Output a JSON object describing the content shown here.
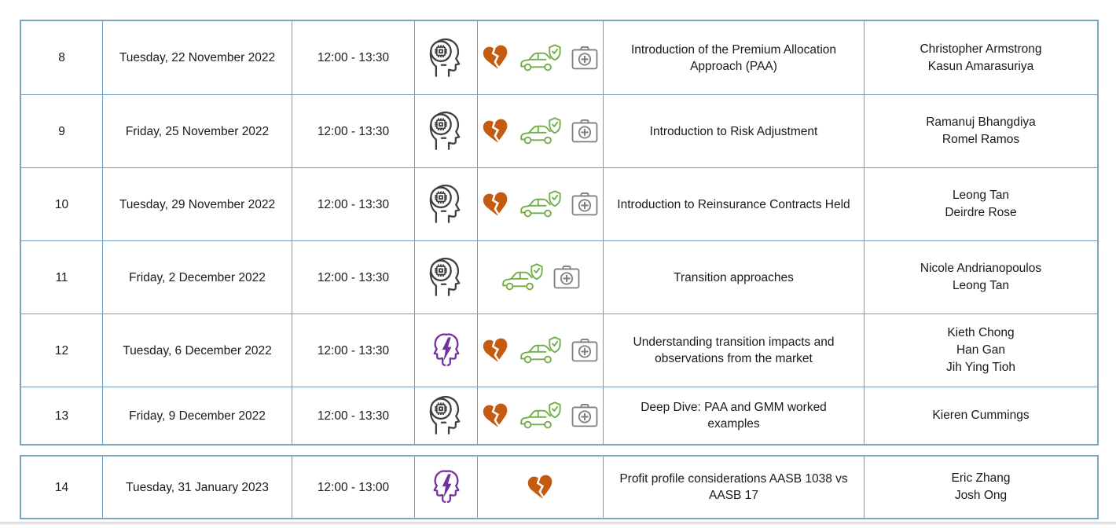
{
  "colors": {
    "line": "#6b9dc6",
    "outerLine": "#7ea3bd",
    "text": "#1a1a1a",
    "headDark": "#3f3f3f",
    "headPurple": "#7030A0",
    "heart": "#C55A11",
    "car": "#70AD47",
    "kit": "#7f7f7f"
  },
  "icon_legend": {
    "head-chip": "head profile with processor chip (technical session)",
    "heads-lightning": "two head profiles with lightning bolt (discussion session)",
    "broken-heart": "broken heart (life insurance)",
    "car-shield": "car with shield checkmark (general insurance)",
    "first-aid-kit": "first aid kit (health insurance)"
  },
  "table": {
    "rows": [
      {
        "session": "8",
        "date": "Tuesday, 22 November 2022",
        "time": "12:00 - 13:30",
        "format_icon": "head-chip",
        "product_icons": [
          "broken-heart",
          "car-shield",
          "first-aid-kit"
        ],
        "topic": "Introduction of the Premium Allocation Approach (PAA)",
        "presenters": [
          "Christopher Armstrong",
          "Kasun Amarasuriya"
        ]
      },
      {
        "session": "9",
        "date": "Friday, 25 November 2022",
        "time": "12:00 - 13:30",
        "format_icon": "head-chip",
        "product_icons": [
          "broken-heart",
          "car-shield",
          "first-aid-kit"
        ],
        "topic": "Introduction to Risk Adjustment",
        "presenters": [
          "Ramanuj Bhangdiya",
          "Romel Ramos"
        ]
      },
      {
        "session": "10",
        "date": "Tuesday, 29 November 2022",
        "time": "12:00 - 13:30",
        "format_icon": "head-chip",
        "product_icons": [
          "broken-heart",
          "car-shield",
          "first-aid-kit"
        ],
        "topic": "Introduction to Reinsurance Contracts Held",
        "presenters": [
          "Leong Tan",
          "Deirdre Rose"
        ]
      },
      {
        "session": "11",
        "date": "Friday, 2 December 2022",
        "time": "12:00 - 13:30",
        "format_icon": "head-chip",
        "product_icons": [
          "car-shield",
          "first-aid-kit"
        ],
        "topic": "Transition approaches",
        "presenters": [
          "Nicole Andrianopoulos",
          "Leong Tan"
        ]
      },
      {
        "session": "12",
        "date": "Tuesday, 6 December 2022",
        "time": "12:00 - 13:30",
        "format_icon": "heads-lightning",
        "product_icons": [
          "broken-heart",
          "car-shield",
          "first-aid-kit"
        ],
        "topic": "Understanding transition impacts and observations from the market",
        "presenters": [
          "Kieth Chong",
          "Han Gan",
          "Jih Ying Tioh"
        ]
      },
      {
        "session": "13",
        "date": "Friday, 9 December 2022",
        "time": "12:00 - 13:30",
        "format_icon": "head-chip",
        "product_icons": [
          "broken-heart",
          "car-shield",
          "first-aid-kit"
        ],
        "topic": "Deep Dive: PAA and GMM worked examples",
        "presenters": [
          "Kieren Cummings"
        ]
      },
      {
        "session": "14",
        "date": "Tuesday, 31 January 2023",
        "time": "12:00 - 13:00",
        "format_icon": "heads-lightning",
        "product_icons": [
          "broken-heart"
        ],
        "topic": "Profit profile considerations AASB 1038 vs AASB 17",
        "presenters": [
          "Eric Zhang",
          "Josh Ong"
        ]
      }
    ]
  }
}
